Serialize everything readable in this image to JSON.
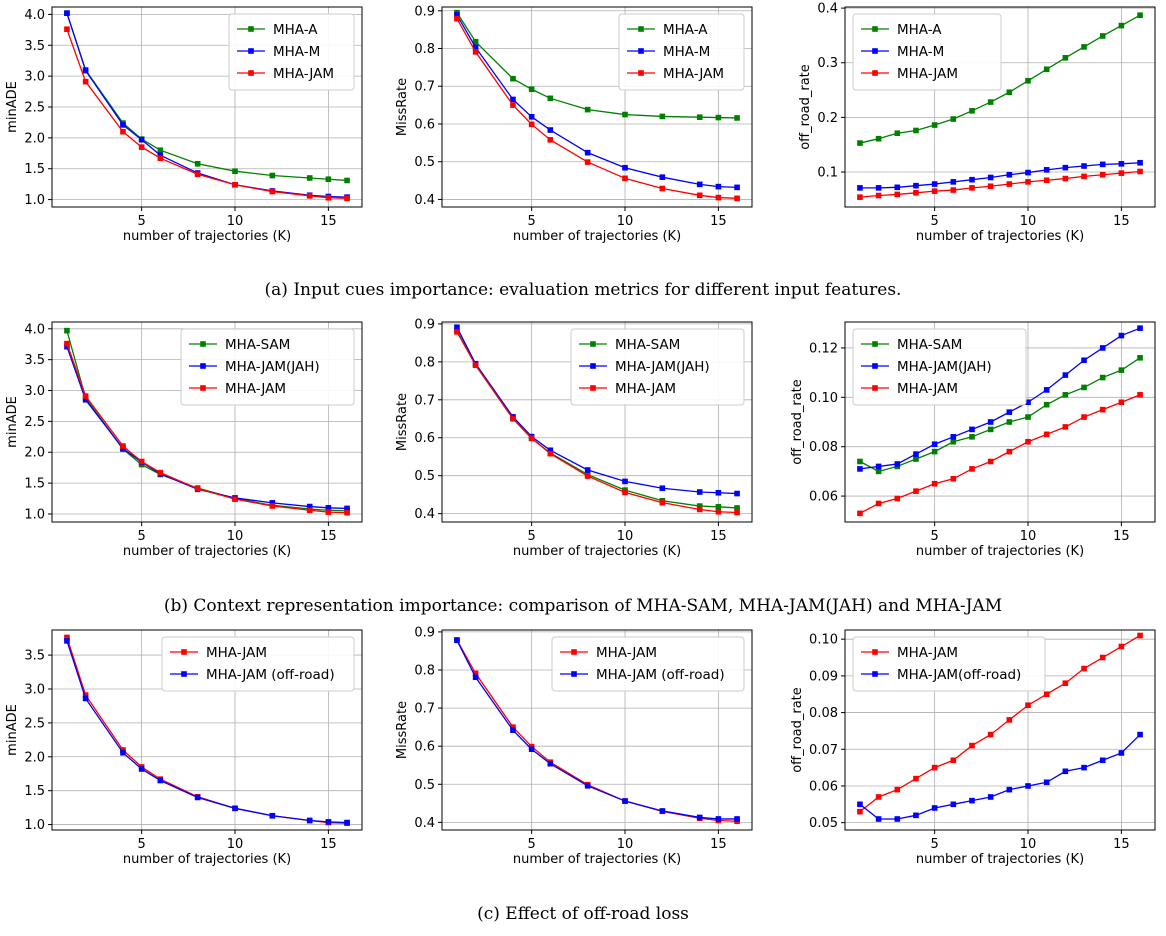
{
  "colors": {
    "MHA-A": "#008000",
    "MHA-M": "#0000ff",
    "MHA-JAM": "#ff0000",
    "MHA-SAM": "#008000",
    "MHA-JAM(JAH)": "#0000ff",
    "MHA-JAM (off-road)": "#0000ff",
    "MHA-JAM(off-road)": "#0000ff"
  },
  "captions": [
    "(a) Input cues importance: evaluation metrics for different input features.",
    "(b) Context representation importance: comparison of MHA-SAM, MHA-JAM(JAH) and MHA-JAM",
    "(c) Effect of off-road loss"
  ],
  "chart_data": [
    {
      "type": "line",
      "xlabel": "number of trajectories (K)",
      "ylabel": "minADE",
      "xlim": [
        0.2,
        16.8
      ],
      "ylim": [
        0.88,
        4.12
      ],
      "xticks": [
        5,
        10,
        15
      ],
      "yticks": [
        1.0,
        1.5,
        2.0,
        2.5,
        3.0,
        3.5,
        4.0
      ],
      "tick_format": "1",
      "grid": true,
      "legend": "top-right",
      "x": [
        1,
        2,
        4,
        5,
        6,
        8,
        10,
        12,
        14,
        15,
        16
      ],
      "series": [
        {
          "name": "MHA-A",
          "values": [
            4.02,
            3.1,
            2.24,
            1.98,
            1.8,
            1.58,
            1.46,
            1.39,
            1.35,
            1.33,
            1.31
          ]
        },
        {
          "name": "MHA-M",
          "values": [
            4.02,
            3.09,
            2.21,
            1.97,
            1.72,
            1.43,
            1.24,
            1.14,
            1.07,
            1.05,
            1.04
          ]
        },
        {
          "name": "MHA-JAM",
          "values": [
            3.76,
            2.91,
            2.1,
            1.85,
            1.67,
            1.41,
            1.24,
            1.13,
            1.06,
            1.03,
            1.02
          ]
        }
      ]
    },
    {
      "type": "line",
      "xlabel": "number of trajectories (K)",
      "ylabel": "MissRate",
      "xlim": [
        0.2,
        16.8
      ],
      "ylim": [
        0.38,
        0.91
      ],
      "xticks": [
        5,
        10,
        15
      ],
      "yticks": [
        0.4,
        0.5,
        0.6,
        0.7,
        0.8,
        0.9
      ],
      "tick_format": "1",
      "grid": true,
      "legend": "top-right",
      "x": [
        1,
        2,
        4,
        5,
        6,
        8,
        10,
        12,
        14,
        15,
        16
      ],
      "series": [
        {
          "name": "MHA-A",
          "values": [
            0.895,
            0.818,
            0.72,
            0.692,
            0.668,
            0.638,
            0.625,
            0.62,
            0.618,
            0.617,
            0.616
          ]
        },
        {
          "name": "MHA-M",
          "values": [
            0.889,
            0.803,
            0.665,
            0.619,
            0.584,
            0.524,
            0.484,
            0.459,
            0.44,
            0.434,
            0.432
          ]
        },
        {
          "name": "MHA-JAM",
          "values": [
            0.879,
            0.791,
            0.65,
            0.599,
            0.558,
            0.499,
            0.456,
            0.429,
            0.411,
            0.405,
            0.403
          ]
        }
      ]
    },
    {
      "type": "line",
      "xlabel": "number of trajectories (K)",
      "ylabel": "off_road_rate",
      "xlim": [
        0.2,
        16.8
      ],
      "ylim": [
        0.036,
        0.402
      ],
      "xticks": [
        5,
        10,
        15
      ],
      "yticks": [
        0.1,
        0.2,
        0.3,
        0.4
      ],
      "tick_format": "1",
      "grid": true,
      "legend": "top-left",
      "x": [
        1,
        2,
        3,
        4,
        5,
        6,
        7,
        8,
        9,
        10,
        11,
        12,
        13,
        14,
        15,
        16
      ],
      "series": [
        {
          "name": "MHA-A",
          "values": [
            0.153,
            0.161,
            0.171,
            0.176,
            0.186,
            0.197,
            0.212,
            0.228,
            0.246,
            0.267,
            0.288,
            0.309,
            0.329,
            0.349,
            0.368,
            0.387
          ]
        },
        {
          "name": "MHA-M",
          "values": [
            0.071,
            0.071,
            0.072,
            0.075,
            0.078,
            0.082,
            0.086,
            0.09,
            0.095,
            0.099,
            0.104,
            0.108,
            0.111,
            0.114,
            0.115,
            0.117
          ]
        },
        {
          "name": "MHA-JAM",
          "values": [
            0.054,
            0.057,
            0.059,
            0.062,
            0.065,
            0.067,
            0.071,
            0.074,
            0.078,
            0.082,
            0.085,
            0.088,
            0.092,
            0.095,
            0.098,
            0.101
          ]
        }
      ]
    },
    {
      "type": "line",
      "xlabel": "number of trajectories (K)",
      "ylabel": "minADE",
      "xlim": [
        0.2,
        16.8
      ],
      "ylim": [
        0.87,
        4.11
      ],
      "xticks": [
        5,
        10,
        15
      ],
      "yticks": [
        1.0,
        1.5,
        2.0,
        2.5,
        3.0,
        3.5,
        4.0
      ],
      "tick_format": "1",
      "grid": true,
      "legend": "top-right",
      "x": [
        1,
        2,
        4,
        5,
        6,
        8,
        10,
        12,
        14,
        15,
        16
      ],
      "series": [
        {
          "name": "MHA-SAM",
          "values": [
            3.97,
            2.88,
            2.05,
            1.8,
            1.64,
            1.42,
            1.25,
            1.14,
            1.08,
            1.06,
            1.05
          ]
        },
        {
          "name": "MHA-JAM(JAH)",
          "values": [
            3.71,
            2.85,
            2.06,
            1.84,
            1.65,
            1.4,
            1.26,
            1.18,
            1.12,
            1.1,
            1.09
          ]
        },
        {
          "name": "MHA-JAM",
          "values": [
            3.76,
            2.91,
            2.1,
            1.85,
            1.67,
            1.41,
            1.24,
            1.13,
            1.06,
            1.03,
            1.02
          ]
        }
      ]
    },
    {
      "type": "line",
      "xlabel": "number of trajectories (K)",
      "ylabel": "MissRate",
      "xlim": [
        0.2,
        16.8
      ],
      "ylim": [
        0.378,
        0.905
      ],
      "xticks": [
        5,
        10,
        15
      ],
      "yticks": [
        0.4,
        0.5,
        0.6,
        0.7,
        0.8,
        0.9
      ],
      "tick_format": "1",
      "grid": true,
      "legend": "top-right",
      "x": [
        1,
        2,
        4,
        5,
        6,
        8,
        10,
        12,
        14,
        15,
        16
      ],
      "series": [
        {
          "name": "MHA-SAM",
          "values": [
            0.882,
            0.792,
            0.65,
            0.598,
            0.56,
            0.503,
            0.462,
            0.434,
            0.42,
            0.418,
            0.415
          ]
        },
        {
          "name": "MHA-JAM(JAH)",
          "values": [
            0.891,
            0.795,
            0.655,
            0.603,
            0.567,
            0.515,
            0.485,
            0.467,
            0.457,
            0.455,
            0.453
          ]
        },
        {
          "name": "MHA-JAM",
          "values": [
            0.879,
            0.791,
            0.65,
            0.599,
            0.558,
            0.499,
            0.456,
            0.429,
            0.411,
            0.405,
            0.403
          ]
        }
      ]
    },
    {
      "type": "line",
      "xlabel": "number of trajectories (K)",
      "ylabel": "off_road_rate",
      "xlim": [
        0.2,
        16.8
      ],
      "ylim": [
        0.0495,
        0.1305
      ],
      "xticks": [
        5,
        10,
        15
      ],
      "yticks": [
        0.06,
        0.08,
        0.1,
        0.12
      ],
      "tick_format": "2",
      "grid": true,
      "legend": "top-left",
      "x": [
        1,
        2,
        3,
        4,
        5,
        6,
        7,
        8,
        9,
        10,
        11,
        12,
        13,
        14,
        15,
        16
      ],
      "series": [
        {
          "name": "MHA-SAM",
          "values": [
            0.074,
            0.07,
            0.072,
            0.075,
            0.078,
            0.082,
            0.084,
            0.087,
            0.09,
            0.092,
            0.097,
            0.101,
            0.104,
            0.108,
            0.111,
            0.116
          ]
        },
        {
          "name": "MHA-JAM(JAH)",
          "values": [
            0.071,
            0.072,
            0.073,
            0.077,
            0.081,
            0.084,
            0.087,
            0.09,
            0.094,
            0.098,
            0.103,
            0.109,
            0.115,
            0.12,
            0.125,
            0.128
          ]
        },
        {
          "name": "MHA-JAM",
          "values": [
            0.053,
            0.057,
            0.059,
            0.062,
            0.065,
            0.067,
            0.071,
            0.074,
            0.078,
            0.082,
            0.085,
            0.088,
            0.092,
            0.095,
            0.098,
            0.101
          ]
        }
      ]
    },
    {
      "type": "line",
      "xlabel": "number of trajectories (K)",
      "ylabel": "minADE",
      "xlim": [
        0.2,
        16.8
      ],
      "ylim": [
        0.92,
        3.87
      ],
      "xticks": [
        5,
        10,
        15
      ],
      "yticks": [
        1.0,
        1.5,
        2.0,
        2.5,
        3.0,
        3.5
      ],
      "tick_format": "1",
      "grid": true,
      "legend": "top-right",
      "x": [
        1,
        2,
        4,
        5,
        6,
        8,
        10,
        12,
        14,
        15,
        16
      ],
      "series": [
        {
          "name": "MHA-JAM",
          "values": [
            3.76,
            2.91,
            2.1,
            1.85,
            1.67,
            1.41,
            1.24,
            1.13,
            1.06,
            1.03,
            1.02
          ]
        },
        {
          "name": "MHA-JAM (off-road)",
          "values": [
            3.71,
            2.86,
            2.06,
            1.82,
            1.65,
            1.4,
            1.24,
            1.13,
            1.06,
            1.04,
            1.03
          ]
        }
      ]
    },
    {
      "type": "line",
      "xlabel": "number of trajectories (K)",
      "ylabel": "MissRate",
      "xlim": [
        0.2,
        16.8
      ],
      "ylim": [
        0.38,
        0.905
      ],
      "xticks": [
        5,
        10,
        15
      ],
      "yticks": [
        0.4,
        0.5,
        0.6,
        0.7,
        0.8,
        0.9
      ],
      "tick_format": "1",
      "grid": true,
      "legend": "top-right",
      "x": [
        1,
        2,
        4,
        5,
        6,
        8,
        10,
        12,
        14,
        15,
        16
      ],
      "series": [
        {
          "name": "MHA-JAM",
          "values": [
            0.879,
            0.791,
            0.65,
            0.599,
            0.558,
            0.499,
            0.456,
            0.429,
            0.411,
            0.405,
            0.403
          ]
        },
        {
          "name": "MHA-JAM (off-road)",
          "values": [
            0.878,
            0.781,
            0.642,
            0.592,
            0.554,
            0.496,
            0.456,
            0.43,
            0.413,
            0.409,
            0.409
          ]
        }
      ]
    },
    {
      "type": "line",
      "xlabel": "number of trajectories (K)",
      "ylabel": "off_road_rate",
      "xlim": [
        0.2,
        16.8
      ],
      "ylim": [
        0.048,
        0.1025
      ],
      "xticks": [
        5,
        10,
        15
      ],
      "yticks": [
        0.05,
        0.06,
        0.07,
        0.08,
        0.09,
        0.1
      ],
      "tick_format": "2",
      "grid": true,
      "legend": "top-left",
      "x": [
        1,
        2,
        3,
        4,
        5,
        6,
        7,
        8,
        9,
        10,
        11,
        12,
        13,
        14,
        15,
        16
      ],
      "series": [
        {
          "name": "MHA-JAM",
          "values": [
            0.053,
            0.057,
            0.059,
            0.062,
            0.065,
            0.067,
            0.071,
            0.074,
            0.078,
            0.082,
            0.085,
            0.088,
            0.092,
            0.095,
            0.098,
            0.101
          ]
        },
        {
          "name": "MHA-JAM(off-road)",
          "values": [
            0.055,
            0.051,
            0.051,
            0.052,
            0.054,
            0.055,
            0.056,
            0.057,
            0.059,
            0.06,
            0.061,
            0.064,
            0.065,
            0.067,
            0.069,
            0.074
          ]
        }
      ]
    }
  ]
}
